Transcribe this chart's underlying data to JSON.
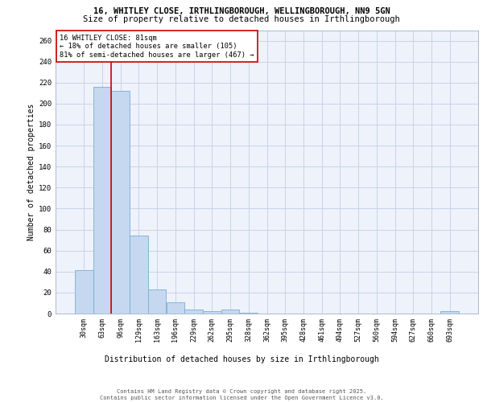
{
  "title_line1": "16, WHITLEY CLOSE, IRTHLINGBOROUGH, WELLINGBOROUGH, NN9 5GN",
  "title_line2": "Size of property relative to detached houses in Irthlingborough",
  "xlabel": "Distribution of detached houses by size in Irthlingborough",
  "ylabel": "Number of detached properties",
  "categories": [
    "30sqm",
    "63sqm",
    "96sqm",
    "129sqm",
    "163sqm",
    "196sqm",
    "229sqm",
    "262sqm",
    "295sqm",
    "328sqm",
    "362sqm",
    "395sqm",
    "428sqm",
    "461sqm",
    "494sqm",
    "527sqm",
    "560sqm",
    "594sqm",
    "627sqm",
    "660sqm",
    "693sqm"
  ],
  "values": [
    41,
    216,
    212,
    74,
    23,
    11,
    4,
    2,
    4,
    1,
    0,
    0,
    0,
    0,
    0,
    0,
    0,
    0,
    0,
    0,
    2
  ],
  "bar_color": "#c5d8f0",
  "bar_edge_color": "#7aadd4",
  "grid_color": "#c8d4e8",
  "background_color": "#eef2fb",
  "vline_x": 1.5,
  "vline_color": "#cc0000",
  "annotation_text": "16 WHITLEY CLOSE: 81sqm\n← 18% of detached houses are smaller (105)\n81% of semi-detached houses are larger (467) →",
  "annotation_box_color": "#ffffff",
  "annotation_box_edge": "#cc0000",
  "footer_text": "Contains HM Land Registry data © Crown copyright and database right 2025.\nContains public sector information licensed under the Open Government Licence v3.0.",
  "ylim": [
    0,
    270
  ],
  "yticks": [
    0,
    20,
    40,
    60,
    80,
    100,
    120,
    140,
    160,
    180,
    200,
    220,
    240,
    260
  ],
  "title_fontsize": 7.5,
  "ylabel_fontsize": 7.0,
  "xlabel_fontsize": 7.0,
  "tick_fontsize": 6.0,
  "annot_fontsize": 6.2,
  "footer_fontsize": 5.0
}
